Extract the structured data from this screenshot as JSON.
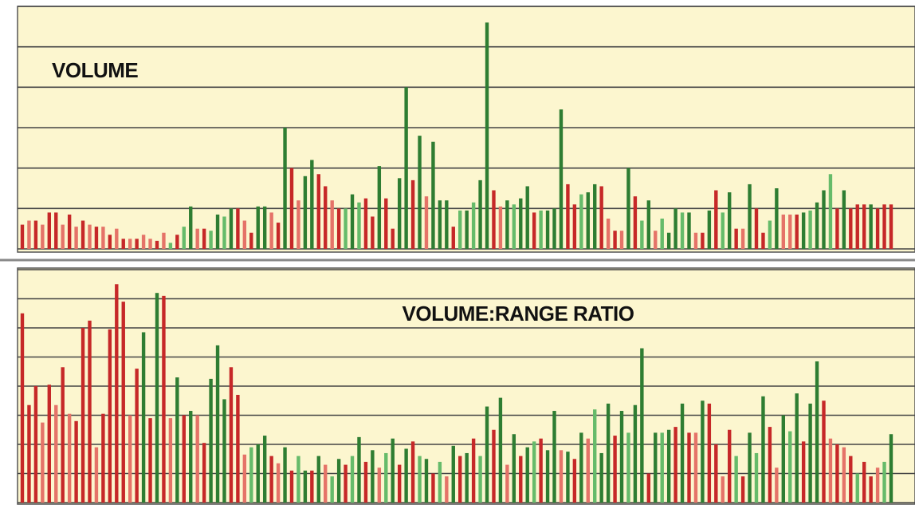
{
  "chart_data": [
    {
      "type": "bar",
      "title": "VOLUME",
      "ylim": [
        0,
        6
      ],
      "yticks": [
        0,
        1,
        2,
        3,
        4,
        5,
        6
      ],
      "grid": true,
      "values": [
        0.6,
        0.7,
        0.7,
        0.6,
        0.9,
        0.9,
        0.6,
        0.85,
        0.55,
        0.7,
        0.6,
        0.55,
        0.55,
        0.35,
        0.5,
        0.25,
        0.25,
        0.25,
        0.35,
        0.25,
        0.2,
        0.4,
        0.15,
        0.35,
        0.55,
        1.05,
        0.5,
        0.5,
        0.45,
        0.85,
        0.8,
        1.0,
        1.0,
        0.7,
        0.4,
        1.05,
        1.05,
        0.9,
        0.65,
        3.0,
        2.0,
        1.2,
        1.8,
        2.2,
        1.85,
        1.55,
        1.2,
        1.0,
        1.0,
        1.35,
        1.15,
        1.25,
        0.8,
        2.05,
        1.25,
        0.5,
        1.75,
        4.0,
        1.7,
        2.8,
        1.3,
        2.65,
        1.2,
        1.2,
        0.55,
        0.95,
        0.95,
        1.15,
        1.7,
        5.6,
        1.45,
        1.05,
        1.2,
        1.1,
        1.25,
        1.55,
        0.9,
        0.95,
        0.95,
        1.0,
        3.45,
        1.6,
        1.1,
        1.35,
        1.4,
        1.6,
        1.55,
        0.75,
        0.45,
        0.45,
        2.0,
        1.3,
        0.7,
        1.2,
        0.45,
        0.75,
        0.4,
        1.0,
        0.9,
        0.9,
        0.4,
        0.4,
        0.95,
        1.45,
        0.9,
        1.4,
        0.5,
        0.5,
        1.6,
        1.0,
        0.4,
        0.7,
        1.5,
        0.85,
        0.85,
        0.85,
        0.9,
        0.95,
        1.15,
        1.45,
        1.85,
        1.0,
        1.45,
        1.0,
        1.1,
        1.1,
        1.1,
        1.0,
        1.1,
        1.1
      ],
      "colors": [
        "#c62828",
        "#e57368",
        "#c62828",
        "#e57368",
        "#c62828",
        "#c62828",
        "#e57368",
        "#c62828",
        "#e57368",
        "#c62828",
        "#e57368",
        "#c62828",
        "#e57368",
        "#c62828",
        "#e57368",
        "#c62828",
        "#e57368",
        "#c62828",
        "#e57368",
        "#e57368",
        "#c62828",
        "#e57368",
        "#66bb6a",
        "#c62828",
        "#66bb6a",
        "#2e7d32",
        "#e57368",
        "#c62828",
        "#66bb6a",
        "#2e7d32",
        "#66bb6a",
        "#2e7d32",
        "#c62828",
        "#e57368",
        "#c62828",
        "#2e7d32",
        "#2e7d32",
        "#e57368",
        "#c62828",
        "#2e7d32",
        "#c62828",
        "#e57368",
        "#2e7d32",
        "#2e7d32",
        "#c62828",
        "#c62828",
        "#e57368",
        "#c62828",
        "#66bb6a",
        "#2e7d32",
        "#66bb6a",
        "#c62828",
        "#c62828",
        "#2e7d32",
        "#c62828",
        "#c62828",
        "#2e7d32",
        "#2e7d32",
        "#c62828",
        "#2e7d32",
        "#e57368",
        "#2e7d32",
        "#2e7d32",
        "#2e7d32",
        "#c62828",
        "#66bb6a",
        "#2e7d32",
        "#66bb6a",
        "#2e7d32",
        "#2e7d32",
        "#c62828",
        "#e57368",
        "#2e7d32",
        "#66bb6a",
        "#2e7d32",
        "#2e7d32",
        "#c62828",
        "#66bb6a",
        "#2e7d32",
        "#2e7d32",
        "#2e7d32",
        "#c62828",
        "#c62828",
        "#66bb6a",
        "#2e7d32",
        "#2e7d32",
        "#c62828",
        "#e57368",
        "#c62828",
        "#e57368",
        "#2e7d32",
        "#c62828",
        "#66bb6a",
        "#2e7d32",
        "#e57368",
        "#66bb6a",
        "#2e7d32",
        "#2e7d32",
        "#66bb6a",
        "#2e7d32",
        "#e57368",
        "#c62828",
        "#2e7d32",
        "#c62828",
        "#66bb6a",
        "#2e7d32",
        "#c62828",
        "#e57368",
        "#2e7d32",
        "#c62828",
        "#c62828",
        "#66bb6a",
        "#2e7d32",
        "#e57368",
        "#e57368",
        "#c62828",
        "#2e7d32",
        "#66bb6a",
        "#2e7d32",
        "#2e7d32",
        "#66bb6a",
        "#c62828",
        "#2e7d32",
        "#c62828",
        "#c62828",
        "#c62828",
        "#2e7d32",
        "#c62828",
        "#c62828",
        "#c62828"
      ]
    },
    {
      "type": "bar",
      "title": "VOLUME:RANGE RATIO",
      "ylim": [
        0,
        8
      ],
      "yticks": [
        0,
        1,
        2,
        3,
        4,
        5,
        6,
        7,
        8
      ],
      "grid": true,
      "values": [
        6.5,
        3.35,
        4.0,
        2.75,
        4.05,
        3.35,
        4.65,
        3.05,
        2.8,
        6.0,
        6.25,
        1.9,
        3.05,
        5.95,
        7.5,
        6.9,
        3.0,
        4.6,
        5.85,
        2.9,
        7.2,
        7.1,
        2.9,
        4.3,
        3.0,
        3.15,
        3.0,
        2.05,
        4.25,
        5.4,
        3.55,
        4.65,
        3.7,
        1.65,
        1.9,
        2.0,
        2.3,
        1.6,
        1.35,
        1.9,
        1.1,
        1.6,
        1.1,
        1.1,
        1.6,
        1.3,
        0.9,
        1.5,
        1.3,
        1.6,
        2.25,
        1.4,
        1.8,
        1.2,
        1.7,
        2.2,
        1.3,
        1.85,
        2.1,
        1.6,
        1.5,
        1.0,
        1.4,
        0.9,
        1.95,
        1.6,
        1.7,
        2.2,
        1.6,
        3.3,
        2.5,
        3.6,
        1.3,
        2.35,
        1.6,
        1.9,
        2.1,
        2.2,
        1.8,
        3.15,
        1.8,
        1.75,
        1.5,
        2.4,
        2.2,
        3.2,
        1.7,
        3.4,
        2.3,
        3.15,
        2.4,
        3.35,
        5.3,
        1.0,
        2.4,
        2.4,
        2.5,
        2.6,
        3.4,
        2.4,
        2.4,
        3.5,
        3.4,
        2.0,
        0.9,
        2.5,
        1.6,
        0.9,
        2.4,
        1.7,
        3.65,
        2.6,
        1.2,
        3.0,
        2.45,
        3.75,
        2.1,
        3.4,
        4.85,
        3.5,
        2.2,
        2.0,
        1.9,
        1.6,
        1.0,
        1.4,
        0.9,
        1.2,
        1.4,
        2.35
      ],
      "colors": [
        "#c62828",
        "#c62828",
        "#c62828",
        "#e57368",
        "#c62828",
        "#e57368",
        "#c62828",
        "#e57368",
        "#c62828",
        "#c62828",
        "#c62828",
        "#e57368",
        "#c62828",
        "#c62828",
        "#c62828",
        "#c62828",
        "#e57368",
        "#c62828",
        "#2e7d32",
        "#c62828",
        "#2e7d32",
        "#c62828",
        "#e57368",
        "#2e7d32",
        "#c62828",
        "#2e7d32",
        "#e57368",
        "#c62828",
        "#2e7d32",
        "#2e7d32",
        "#2e7d32",
        "#c62828",
        "#c62828",
        "#e57368",
        "#66bb6a",
        "#2e7d32",
        "#2e7d32",
        "#c62828",
        "#e57368",
        "#2e7d32",
        "#c62828",
        "#66bb6a",
        "#2e7d32",
        "#c62828",
        "#2e7d32",
        "#e57368",
        "#66bb6a",
        "#2e7d32",
        "#c62828",
        "#66bb6a",
        "#2e7d32",
        "#c62828",
        "#2e7d32",
        "#e57368",
        "#66bb6a",
        "#2e7d32",
        "#c62828",
        "#2e7d32",
        "#c62828",
        "#66bb6a",
        "#2e7d32",
        "#c62828",
        "#66bb6a",
        "#e57368",
        "#2e7d32",
        "#c62828",
        "#2e7d32",
        "#c62828",
        "#66bb6a",
        "#2e7d32",
        "#c62828",
        "#2e7d32",
        "#e57368",
        "#2e7d32",
        "#c62828",
        "#2e7d32",
        "#66bb6a",
        "#c62828",
        "#2e7d32",
        "#2e7d32",
        "#e57368",
        "#2e7d32",
        "#c62828",
        "#2e7d32",
        "#e57368",
        "#66bb6a",
        "#2e7d32",
        "#2e7d32",
        "#c62828",
        "#2e7d32",
        "#66bb6a",
        "#2e7d32",
        "#2e7d32",
        "#c62828",
        "#2e7d32",
        "#66bb6a",
        "#2e7d32",
        "#c62828",
        "#2e7d32",
        "#c62828",
        "#e57368",
        "#2e7d32",
        "#c62828",
        "#c62828",
        "#e57368",
        "#c62828",
        "#66bb6a",
        "#c62828",
        "#2e7d32",
        "#66bb6a",
        "#2e7d32",
        "#c62828",
        "#e57368",
        "#2e7d32",
        "#66bb6a",
        "#2e7d32",
        "#c62828",
        "#2e7d32",
        "#2e7d32",
        "#c62828",
        "#e57368",
        "#c62828",
        "#e57368",
        "#c62828",
        "#66bb6a",
        "#c62828",
        "#c62828",
        "#e57368",
        "#66bb6a",
        "#2e7d32"
      ]
    }
  ]
}
